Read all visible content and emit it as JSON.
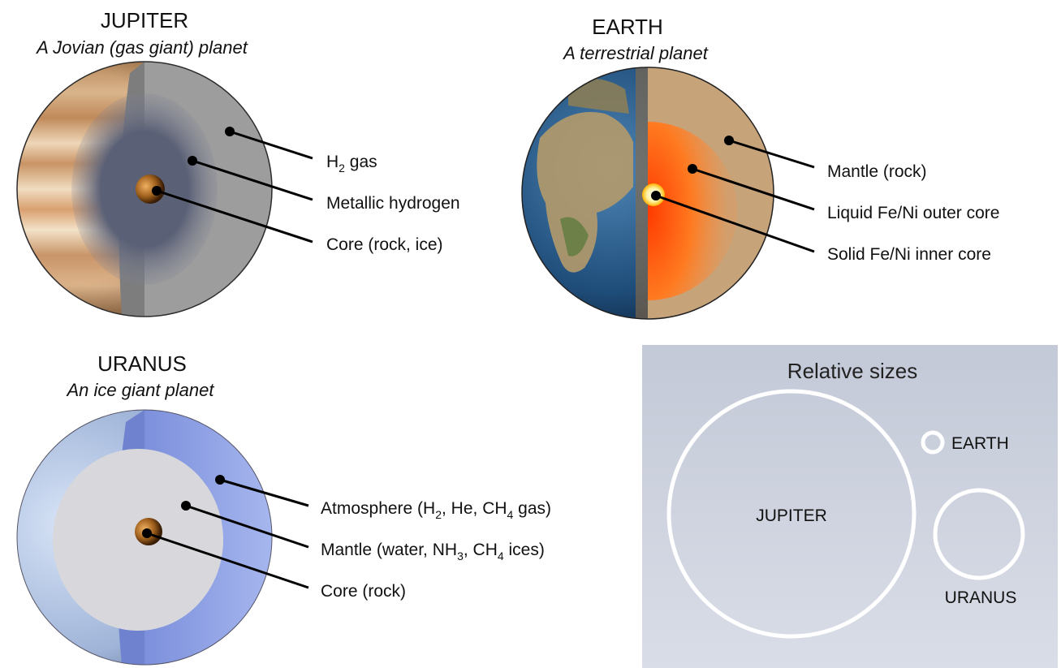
{
  "planets": [
    {
      "id": "jupiter",
      "name": "JUPITER",
      "subtitle": "A Jovian (gas giant) planet",
      "layers": [
        {
          "label": "H",
          "sub": "2",
          "after": " gas"
        },
        {
          "label": "Metallic hydrogen"
        },
        {
          "label": "Core (rock, ice)"
        }
      ]
    },
    {
      "id": "earth",
      "name": "EARTH",
      "subtitle": "A terrestrial planet",
      "layers": [
        {
          "label": "Mantle (rock)"
        },
        {
          "label": "Liquid Fe/Ni outer core"
        },
        {
          "label": "Solid Fe/Ni inner core"
        }
      ]
    },
    {
      "id": "uranus",
      "name": "URANUS",
      "subtitle": "An ice giant planet",
      "layers": [
        {
          "parts": [
            "Atmosphere (H",
            "2",
            ", He, CH",
            "4",
            " gas)"
          ]
        },
        {
          "parts": [
            "Mantle (water, NH",
            "3",
            ", CH",
            "4",
            " ices)"
          ]
        },
        {
          "parts": [
            "Core (rock)"
          ]
        }
      ]
    }
  ],
  "relative_sizes": {
    "title": "Relative sizes",
    "labels": {
      "jupiter": "JUPITER",
      "earth": "EARTH",
      "uranus": "URANUS"
    }
  },
  "colors": {
    "panel_bg": "#c8cdd9",
    "jupiter_interior": "#9a9a9a",
    "metallic_hydrogen": "#5e6478",
    "earth_mantle": "#c7a37a",
    "earth_outer_core": "#f26a1b",
    "uranus_atmosphere": "#8ea1e6",
    "uranus_mantle": "#d9d9dd"
  }
}
